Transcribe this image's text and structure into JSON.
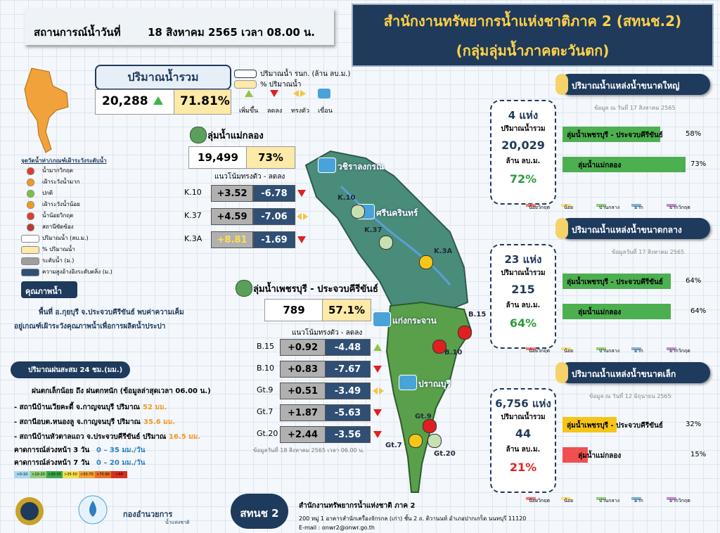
{
  "header": {
    "date_label": "สถานการณ์น้ำวันที่",
    "date": "18 สิงหาคม 2565 เวลา 08.00 น."
  },
  "title": {
    "line1": "สำนักงานทรัพยากรน้ำแห่งชาติภาค 2 (สทนช.2)",
    "line2": "(กลุ่มลุ่มน้ำภาคตะวันตก)"
  },
  "total": {
    "label": "ปริมาณน้ำรวม",
    "volume": "20,288",
    "percent": "71.81%"
  },
  "legend_top": {
    "volume": "ปริมาณน้ำ รนก. (ล้าน ลบ.ม.)",
    "percent": "% ปริมาณน้ำ",
    "icons": [
      "เพิ่มขึ้น",
      "ลดลง",
      "ทรงตัว",
      "เขื่อน"
    ]
  },
  "legend_left": {
    "title": "จุดวัดน้ำท่า/เกณฑ์เฝ้าระวังระดับน้ำ",
    "items": [
      {
        "text": "น้ำมากวิกฤต",
        "color": "#e53a2a"
      },
      {
        "text": "เฝ้าระวังน้ำมาก",
        "color": "#f39a1e"
      },
      {
        "text": "ปกติ",
        "color": "#7cc242"
      },
      {
        "text": "เฝ้าระวังน้ำน้อย",
        "color": "#f39a1e"
      },
      {
        "text": "น้ำน้อยวิกฤต",
        "color": "#e53a2a"
      },
      {
        "text": "สถานีขัดข้อง",
        "color": "#c0392b"
      },
      {
        "text": "ปริมาณน้ำ (ลบ.ม.)",
        "color": "#ffffff"
      },
      {
        "text": "% ปริมาณน้ำ",
        "color": "#fde9a8"
      },
      {
        "text": "ระดับน้ำ (ม.)",
        "color": "#9e9e9e"
      },
      {
        "text": "ความสูงอ้างอิงระดับตลิ่ง (ม.)",
        "color": "#2f4f75"
      }
    ]
  },
  "water_quality": {
    "title": "คุณภาพน้ำ",
    "lines": [
      "พื้นที่ อ.กุยบุรี จ.ประจวบคีรีขันธ์ พบค่าความเค็ม",
      "อยู่เกณฑ์เฝ้าระวังคุณภาพน้ำเพื่อการผลิตน้ำประปา"
    ]
  },
  "rain": {
    "title": "ปริมาณฝนสะสม 24 ชม.(มม.)",
    "summary": "ฝนตกเล็กน้อย ถึง ฝนตกหนัก (ข้อมูลล่าสุดเวลา 06.00 น.)",
    "stations": [
      {
        "text": "- สถานีบ้านเวียคะดี้ จ.กาญจนบุรี ปริมาณ",
        "amount": "52 มม."
      },
      {
        "text": "- สถานีอบต.หนองลู จ.กาญจนบุรี ปริมาณ",
        "amount": "35.6 มม."
      },
      {
        "text": "- สถานีบ้านหัวตาลแถว จ.ประจวบคีรีขันธ์ ปริมาณ",
        "amount": "16.5 มม."
      }
    ],
    "forecasts": [
      {
        "label": "คาดการณ์ล่วงหน้า 3 วัน",
        "range": "0 – 35 มม./วัน"
      },
      {
        "label": "คาดการณ์ล่วงหน้า 7 วัน",
        "range": "0 – 20 มม./วัน"
      }
    ],
    "scale": [
      {
        "label": ">0-10",
        "color": "#a8d8f0"
      },
      {
        "label": ">10-20",
        "color": "#8fd07a"
      },
      {
        "label": ">20-35",
        "color": "#3aa84a"
      },
      {
        "label": ">35-50",
        "color": "#f5e04a"
      },
      {
        "label": ">50-70",
        "color": "#f5a03a"
      },
      {
        "label": ">70-90",
        "color": "#e8702a"
      },
      {
        "label": ">90",
        "color": "#d83020"
      }
    ]
  },
  "basins": [
    {
      "name": "ลุ่มน้ำแม่กลอง",
      "volume": "19,499",
      "percent": "73%",
      "trend": "แนวโน้มทรงตัว  -  ลดลง",
      "stations": [
        {
          "id": "K.10",
          "rise": "+3.52",
          "fall": "-6.78",
          "trend": "down"
        },
        {
          "id": "K.37",
          "rise": "+4.59",
          "fall": "-7.06",
          "trend": "steady"
        },
        {
          "id": "K.3A",
          "rise": "+8.81",
          "fall": "-1.69",
          "trend": "down"
        }
      ]
    },
    {
      "name": "ลุ่มน้ำเพชรบุรี - ประจวบคีรีขันธ์",
      "volume": "789",
      "percent": "57.1%",
      "trend": "แนวโน้มทรงตัว  -  ลดลง",
      "note": "ข้อมูลวันที่ 18 สิงหาคม 2565   เวลา 06.00 น.",
      "stations": [
        {
          "id": "B.15",
          "rise": "+0.92",
          "fall": "-4.48",
          "trend": "up"
        },
        {
          "id": "B.10",
          "rise": "+0.83",
          "fall": "-7.67",
          "trend": "down"
        },
        {
          "id": "Gt.9",
          "rise": "+0.51",
          "fall": "-3.49",
          "trend": "steady"
        },
        {
          "id": "Gt.7",
          "rise": "+1.87",
          "fall": "-5.63",
          "trend": "down"
        },
        {
          "id": "Gt.20",
          "rise": "+2.44",
          "fall": "-3.56",
          "trend": "down"
        }
      ]
    }
  ],
  "map": {
    "dams": [
      "วชิราลงกรณ",
      "ศรีนครินทร์",
      "แก่งกระจาน",
      "ปราณบุรี"
    ],
    "stations": [
      "K.10",
      "K.37",
      "K.3A",
      "B.15",
      "B.10",
      "Gt.9",
      "Gt.7",
      "Gt.20"
    ]
  },
  "reservoir_scale": [
    {
      "label": "น้อยวิกฤต",
      "color": "#f27a7a"
    },
    {
      "label": "น้อย",
      "color": "#f5e07a"
    },
    {
      "label": "ปานกลาง",
      "color": "#8fd07a"
    },
    {
      "label": "มาก",
      "color": "#7ab0e0"
    },
    {
      "label": "มากวิกฤต",
      "color": "#c08ad8"
    }
  ],
  "reservoirs": [
    {
      "title": "ปริมาณน้ำแหล่งน้ำขนาดใหญ่",
      "date": "ข้อมูล ณ วันที่   17 สิงหาคม 2565",
      "count": "4 แห่ง",
      "total_label": "ปริมาณน้ำรวม",
      "volume": "20,029",
      "unit": "ล้าน ลบ.ม.",
      "percent": "72%",
      "percent_color": "#2a9d3a",
      "basins": [
        {
          "name": "ลุ่มน้ำเพชรบุรี - ประจวบคีรีขันธ์",
          "value": 58,
          "label": "58%",
          "color": "#4caf50"
        },
        {
          "name": "ลุ่มน้ำแม่กลอง",
          "value": 73,
          "label": "73%",
          "color": "#4caf50"
        }
      ]
    },
    {
      "title": "ปริมาณน้ำแหล่งน้ำขนาดกลาง",
      "date": "ข้อมูลวันที่ 17 สิงหาคม  2565",
      "count": "23 แห่ง",
      "total_label": "ปริมาณน้ำรวม",
      "volume": "215",
      "unit": "ล้าน ลบ.ม.",
      "percent": "64%",
      "percent_color": "#2a9d3a",
      "basins": [
        {
          "name": "ลุ่มน้ำเพชรบุรี - ประจวบคีรีขันธ์",
          "value": 64,
          "label": "64%",
          "color": "#4caf50"
        },
        {
          "name": "ลุ่มน้ำแม่กลอง",
          "value": 64,
          "label": "64%",
          "color": "#4caf50"
        }
      ]
    },
    {
      "title": "ปริมาณน้ำแหล่งน้ำขนาดเล็ก",
      "date": "ข้อมูล ณ วันที่ 12 มิถุนายน 2565",
      "count": "6,756 แห่ง",
      "total_label": "ปริมาณน้ำรวม",
      "volume": "44",
      "unit": "ล้าน ลบ.ม.",
      "percent": "21%",
      "percent_color": "#e02020",
      "basins": [
        {
          "name": "ลุ่มน้ำเพชรบุรี - ประจวบคีรีขันธ์",
          "value": 32,
          "label": "32%",
          "color": "#f5c518"
        },
        {
          "name": "ลุ่มน้ำแม่กลอง",
          "value": 15,
          "label": "15%",
          "color": "#f05050"
        }
      ]
    }
  ],
  "footer": {
    "agency_logo": [
      "กองอำนวยการ",
      "น้ำแห่งชาติ"
    ],
    "badge": "สทนช 2",
    "office": "สำนักงานทรัพยากรน้ำแห่งชาติ ภาค 2",
    "address": "200 หมู่ 1 อาคารสำนักเครื่องจักรกล (เก่า) ชั้น 2 ถ. ติวานนท์ อำเภอปากเกร็ด นนทบุรี 11120",
    "email": "E-mail : onwr2@onwr.go.th"
  }
}
